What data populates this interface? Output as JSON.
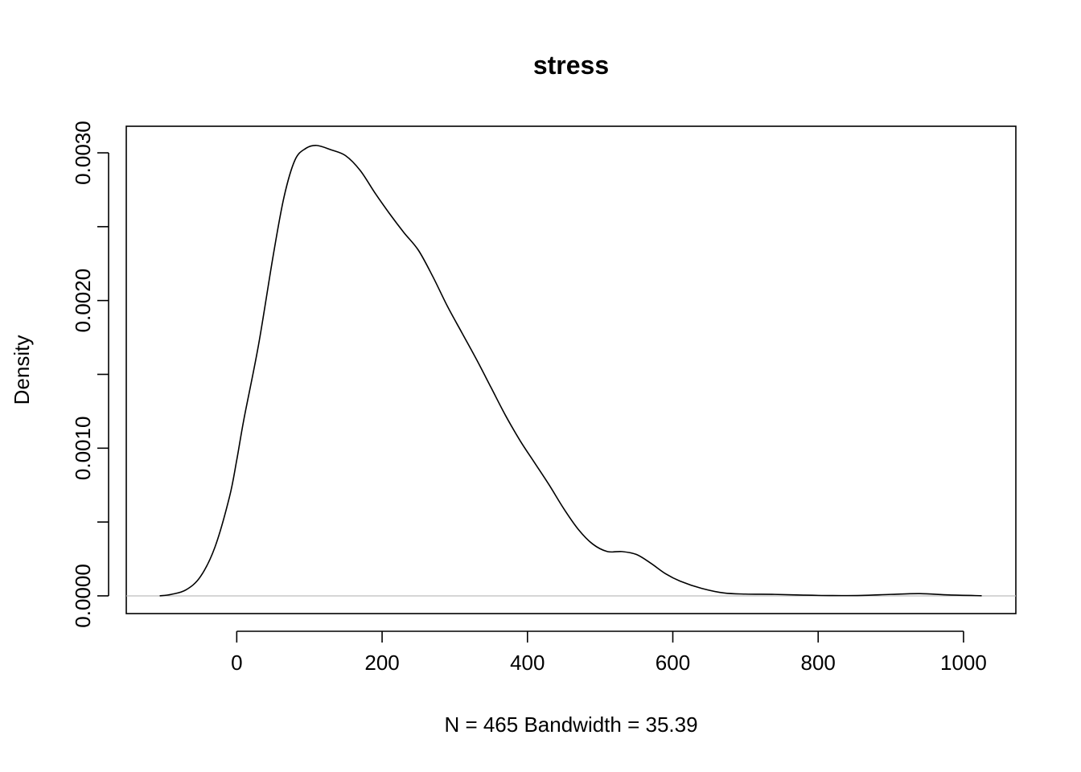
{
  "chart_data": {
    "type": "line",
    "title": "stress",
    "xlabel": "N = 465   Bandwidth = 35.39",
    "ylabel": "Density",
    "xlim": [
      -152,
      1072
    ],
    "ylim": [
      -0.00012,
      0.00318
    ],
    "x_ticks": [
      0,
      200,
      400,
      600,
      800,
      1000
    ],
    "x_tick_labels": [
      "0",
      "200",
      "400",
      "600",
      "800",
      "1000"
    ],
    "y_ticks": [
      0,
      0.0005,
      0.001,
      0.0015,
      0.002,
      0.0025,
      0.003
    ],
    "y_tick_labels": [
      "0.0000",
      "",
      "0.0010",
      "",
      "0.0020",
      "",
      "0.0030"
    ],
    "zero_line": true,
    "grid": false,
    "series": [
      {
        "x": [
          -106,
          -90,
          -70,
          -50,
          -30,
          -10,
          0,
          10,
          30,
          50,
          65,
          80,
          95,
          110,
          130,
          150,
          170,
          190,
          210,
          230,
          250,
          270,
          290,
          310,
          330,
          350,
          370,
          390,
          410,
          430,
          450,
          470,
          490,
          510,
          530,
          550,
          570,
          590,
          610,
          640,
          670,
          700,
          740,
          780,
          820,
          860,
          900,
          940,
          980,
          1025
        ],
        "y": [
          0,
          1e-05,
          4e-05,
          0.00013,
          0.00033,
          0.00067,
          0.00092,
          0.0012,
          0.0017,
          0.0023,
          0.0027,
          0.00295,
          0.00303,
          0.00305,
          0.00302,
          0.00298,
          0.00288,
          0.00273,
          0.00259,
          0.00246,
          0.00234,
          0.00216,
          0.00196,
          0.00178,
          0.0016,
          0.00141,
          0.00122,
          0.00105,
          0.0009,
          0.00075,
          0.00059,
          0.00045,
          0.00035,
          0.0003,
          0.0003,
          0.00028,
          0.00022,
          0.00015,
          0.0001,
          5e-05,
          2e-05,
          1.2e-05,
          1e-05,
          5e-06,
          2e-06,
          3e-06,
          1e-05,
          1.5e-05,
          6e-06,
          1e-06
        ]
      }
    ]
  }
}
